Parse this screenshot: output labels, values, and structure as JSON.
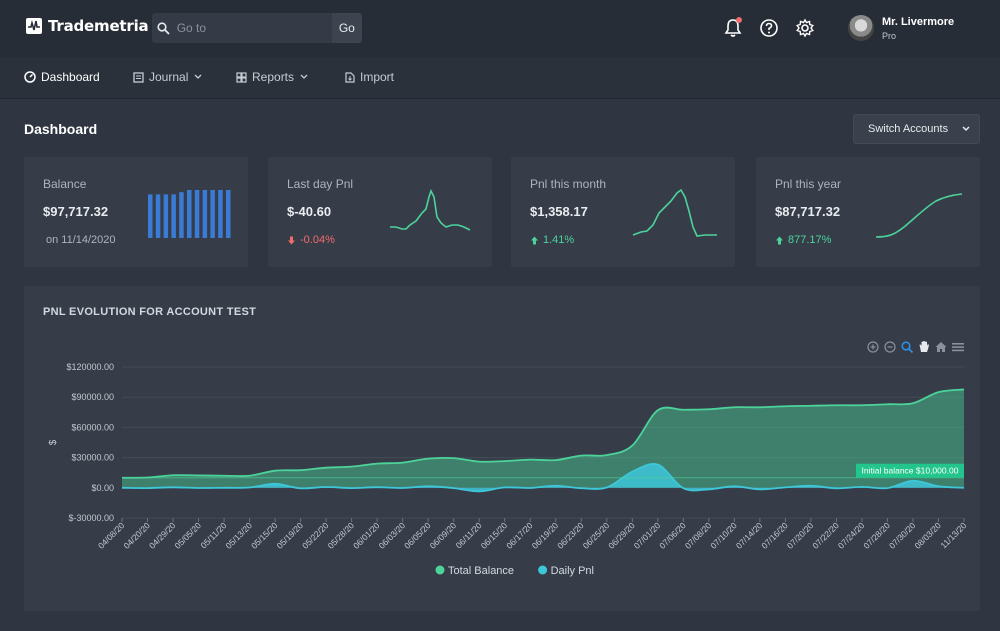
{
  "brand": {
    "name": "Trademetria"
  },
  "search": {
    "placeholder": "Go to",
    "value": "",
    "go_label": "Go"
  },
  "user": {
    "name": "Mr. Livermore",
    "plan": "Pro"
  },
  "nav": {
    "items": [
      {
        "label": "Dashboard",
        "icon": "dashboard-icon",
        "active": true
      },
      {
        "label": "Journal",
        "icon": "journal-icon",
        "dropdown": true
      },
      {
        "label": "Reports",
        "icon": "reports-icon",
        "dropdown": true
      },
      {
        "label": "Import",
        "icon": "import-icon"
      }
    ]
  },
  "page": {
    "title": "Dashboard",
    "switch_label": "Switch Accounts"
  },
  "cards": [
    {
      "label": "Balance",
      "value": "$97,717.32",
      "sub": "on 11/14/2020",
      "bars": [
        10,
        10,
        10,
        10,
        10.5,
        11,
        11,
        11,
        11,
        11,
        11
      ]
    },
    {
      "label": "Last day Pnl",
      "value": "$-40.60",
      "sub": "-0.04%",
      "trend": "down"
    },
    {
      "label": "Pnl this month",
      "value": "$1,358.17",
      "sub": "1.41%",
      "trend": "up"
    },
    {
      "label": "Pnl this year",
      "value": "$87,717.32",
      "sub": "877.17%",
      "trend": "up"
    }
  ],
  "colors": {
    "accent_green": "#4cd39a",
    "accent_blue": "#3a7bd5",
    "daily_pnl": "#3ec6d9",
    "negative": "#f26b6b"
  },
  "chart_data": {
    "type": "area",
    "title": "PNL EVOLUTION  FOR ACCOUNT TEST",
    "ylabel": "$",
    "ylim": [
      -30000,
      120000
    ],
    "yticks": [
      "$120000.00",
      "$90000.00",
      "$60000.00",
      "$30000.00",
      "$0.00",
      "$-30000.00"
    ],
    "x": [
      "04/08/20",
      "04/20/20",
      "04/29/20",
      "05/05/20",
      "05/11/20",
      "05/13/20",
      "05/15/20",
      "05/19/20",
      "05/22/20",
      "05/28/20",
      "06/01/20",
      "06/03/20",
      "06/05/20",
      "06/09/20",
      "06/11/20",
      "06/15/20",
      "06/17/20",
      "06/19/20",
      "06/23/20",
      "06/25/20",
      "06/29/20",
      "07/01/20",
      "07/06/20",
      "07/08/20",
      "07/10/20",
      "07/14/20",
      "07/16/20",
      "07/20/20",
      "07/22/20",
      "07/24/20",
      "07/28/20",
      "07/30/20",
      "08/03/20",
      "11/13/20"
    ],
    "series": [
      {
        "name": "Total Balance",
        "color": "#4cd39a",
        "values": [
          10000,
          10200,
          12500,
          12300,
          12000,
          12000,
          17000,
          17500,
          20000,
          21000,
          24000,
          25000,
          29000,
          29500,
          26000,
          26500,
          28000,
          27500,
          32000,
          32500,
          42000,
          77000,
          77500,
          78000,
          80000,
          80000,
          81000,
          81500,
          82000,
          82000,
          83000,
          84000,
          95000,
          97717
        ]
      },
      {
        "name": "Daily Pnl",
        "color": "#3ec6d9",
        "values": [
          0,
          -300,
          500,
          -200,
          0,
          300,
          4000,
          -500,
          800,
          -300,
          600,
          -200,
          1500,
          -300,
          -3500,
          400,
          -200,
          2000,
          -400,
          300,
          16000,
          23000,
          -400,
          -1500,
          1500,
          -1500,
          400,
          2000,
          -500,
          900,
          -300,
          7000,
          1500,
          -40
        ]
      }
    ],
    "annotation": {
      "label": "Initial balance $10,000.00",
      "value": 10000
    },
    "legend": "bottom",
    "grid": true
  }
}
